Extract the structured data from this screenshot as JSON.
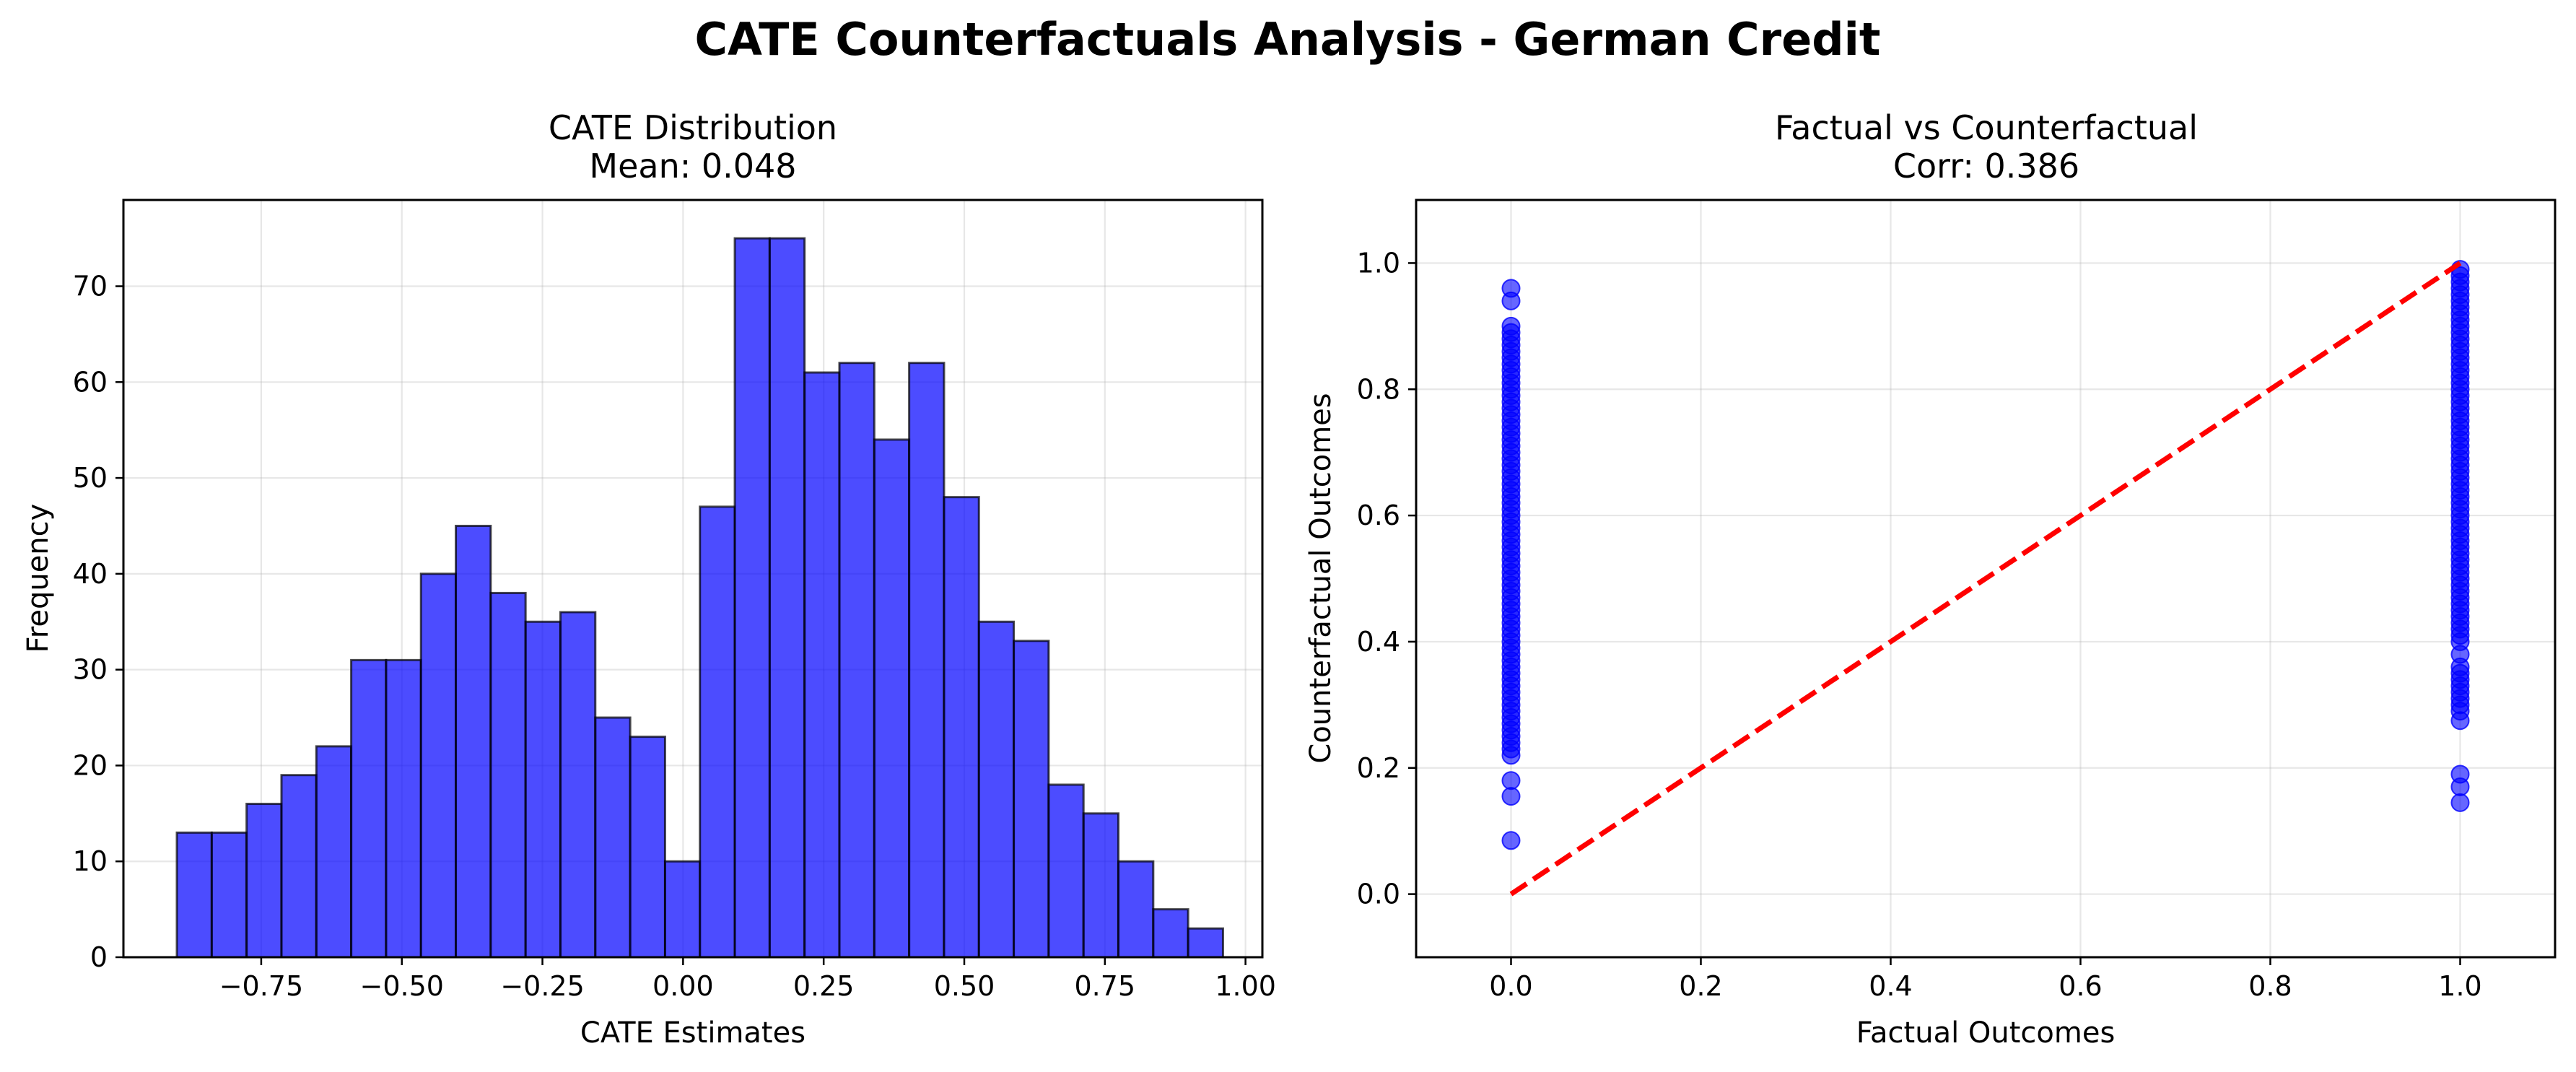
{
  "figure": {
    "title": "CATE Counterfactuals Analysis - German Credit"
  },
  "chart_data": [
    {
      "type": "bar",
      "subtype": "histogram",
      "title": "CATE Distribution",
      "subtitle": "Mean: 0.048",
      "xlabel": "CATE Estimates",
      "ylabel": "Frequency",
      "xlim": [
        -0.995,
        1.03
      ],
      "ylim": [
        0,
        79
      ],
      "xticks": [
        -0.75,
        -0.5,
        -0.25,
        0.0,
        0.25,
        0.5,
        0.75,
        1.0
      ],
      "xtick_labels": [
        "−0.75",
        "−0.50",
        "−0.25",
        "0.00",
        "0.25",
        "0.50",
        "0.75",
        "1.00"
      ],
      "yticks": [
        0,
        10,
        20,
        30,
        40,
        50,
        60,
        70
      ],
      "grid": true,
      "bar_color": "#0000ff",
      "bin_edges": [
        -0.9,
        -0.838,
        -0.776,
        -0.714,
        -0.652,
        -0.59,
        -0.528,
        -0.466,
        -0.404,
        -0.342,
        -0.28,
        -0.218,
        -0.156,
        -0.094,
        -0.032,
        0.03,
        0.092,
        0.154,
        0.216,
        0.278,
        0.34,
        0.402,
        0.464,
        0.526,
        0.588,
        0.65,
        0.712,
        0.774,
        0.836,
        0.898,
        0.96
      ],
      "values": [
        13,
        13,
        16,
        19,
        22,
        31,
        31,
        40,
        45,
        38,
        35,
        36,
        25,
        23,
        10,
        47,
        75,
        75,
        61,
        62,
        54,
        62,
        48,
        35,
        33,
        18,
        15,
        10,
        5,
        3
      ]
    },
    {
      "type": "scatter",
      "title": "Factual vs Counterfactual",
      "subtitle": "Corr: 0.386",
      "xlabel": "Factual Outcomes",
      "ylabel": "Counterfactual Outcomes",
      "xlim": [
        -0.1,
        1.1
      ],
      "ylim": [
        -0.1,
        1.1
      ],
      "xticks": [
        0.0,
        0.2,
        0.4,
        0.6,
        0.8,
        1.0
      ],
      "xtick_labels": [
        "0.0",
        "0.2",
        "0.4",
        "0.6",
        "0.8",
        "1.0"
      ],
      "yticks": [
        0.0,
        0.2,
        0.4,
        0.6,
        0.8,
        1.0
      ],
      "ytick_labels": [
        "0.0",
        "0.2",
        "0.4",
        "0.6",
        "0.8",
        "1.0"
      ],
      "grid": true,
      "point_color": "#0000ff",
      "reference_line": {
        "from": [
          0,
          0
        ],
        "to": [
          1,
          1
        ],
        "color": "#ff0000",
        "style": "dashed"
      },
      "series": [
        {
          "x": 0,
          "y": [
            0.085,
            0.155,
            0.18,
            0.22,
            0.23,
            0.24,
            0.25,
            0.26,
            0.27,
            0.28,
            0.29,
            0.3,
            0.31,
            0.32,
            0.33,
            0.34,
            0.35,
            0.36,
            0.37,
            0.38,
            0.39,
            0.4,
            0.41,
            0.42,
            0.43,
            0.44,
            0.45,
            0.46,
            0.47,
            0.48,
            0.49,
            0.5,
            0.51,
            0.52,
            0.53,
            0.54,
            0.55,
            0.56,
            0.57,
            0.58,
            0.59,
            0.6,
            0.61,
            0.62,
            0.63,
            0.64,
            0.65,
            0.66,
            0.67,
            0.68,
            0.69,
            0.7,
            0.71,
            0.72,
            0.73,
            0.74,
            0.75,
            0.76,
            0.77,
            0.78,
            0.79,
            0.8,
            0.81,
            0.82,
            0.83,
            0.84,
            0.85,
            0.86,
            0.87,
            0.88,
            0.89,
            0.9,
            0.94,
            0.96
          ]
        },
        {
          "x": 1,
          "y": [
            0.145,
            0.17,
            0.19,
            0.275,
            0.29,
            0.3,
            0.31,
            0.32,
            0.33,
            0.34,
            0.35,
            0.36,
            0.38,
            0.4,
            0.41,
            0.42,
            0.43,
            0.44,
            0.45,
            0.46,
            0.47,
            0.48,
            0.49,
            0.5,
            0.51,
            0.52,
            0.53,
            0.54,
            0.55,
            0.56,
            0.57,
            0.58,
            0.59,
            0.6,
            0.61,
            0.62,
            0.63,
            0.64,
            0.65,
            0.66,
            0.67,
            0.68,
            0.69,
            0.7,
            0.71,
            0.72,
            0.73,
            0.74,
            0.75,
            0.76,
            0.77,
            0.78,
            0.79,
            0.8,
            0.81,
            0.82,
            0.83,
            0.84,
            0.85,
            0.86,
            0.87,
            0.88,
            0.89,
            0.9,
            0.91,
            0.92,
            0.93,
            0.94,
            0.95,
            0.96,
            0.97,
            0.98,
            0.99
          ]
        }
      ]
    }
  ]
}
